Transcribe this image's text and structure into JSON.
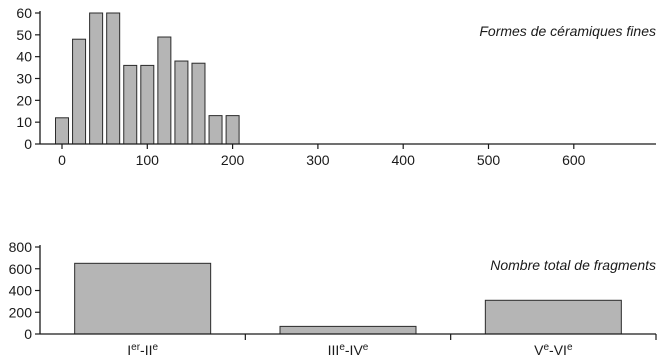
{
  "chart_data": [
    {
      "type": "bar",
      "title": "Formes de céramiques fines",
      "xlabel": "",
      "ylabel": "",
      "x": [
        0,
        20,
        40,
        60,
        80,
        100,
        120,
        140,
        160,
        180,
        200
      ],
      "values": [
        12,
        48,
        60,
        60,
        36,
        36,
        49,
        38,
        37,
        13,
        13
      ],
      "xlim": [
        -10,
        680
      ],
      "ylim": [
        0,
        60
      ],
      "xticks": [
        "0",
        "100",
        "200",
        "300",
        "400",
        "500",
        "600"
      ],
      "yticks": [
        "0",
        "10",
        "20",
        "30",
        "40",
        "50",
        "60"
      ],
      "grid": false,
      "legend": "none"
    },
    {
      "type": "bar",
      "title": "Nombre total de fragments",
      "xlabel": "",
      "ylabel": "",
      "categories": [
        {
          "base": "I",
          "sup1": "er",
          "mid": "-II",
          "sup2": "e"
        },
        {
          "base": "III",
          "sup1": "e",
          "mid": "-IV",
          "sup2": "e"
        },
        {
          "base": "V",
          "sup1": "e",
          "mid": "-VI",
          "sup2": "e"
        }
      ],
      "values": [
        650,
        70,
        310
      ],
      "ylim": [
        0,
        800
      ],
      "yticks": [
        "0",
        "200",
        "400",
        "600",
        "800"
      ],
      "grid": false,
      "legend": "none"
    }
  ]
}
